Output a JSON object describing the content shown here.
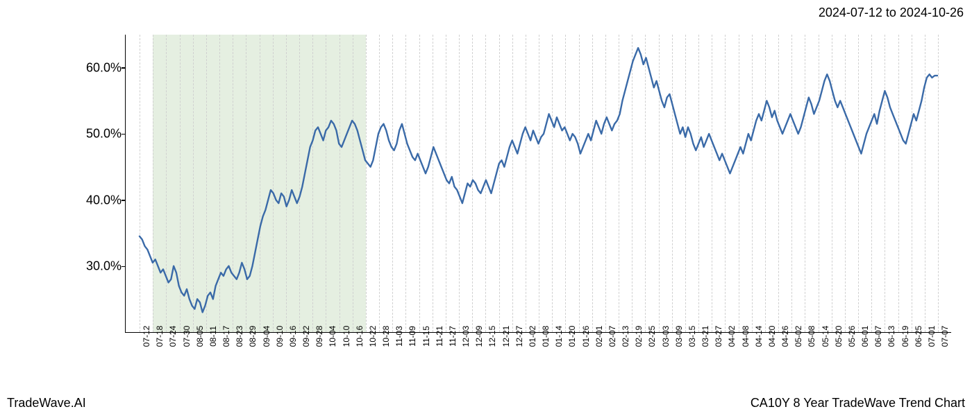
{
  "header": {
    "date_range": "2024-07-12 to 2024-10-26"
  },
  "footer": {
    "left": "TradeWave.AI",
    "right": "CA10Y 8 Year TradeWave Trend Chart"
  },
  "chart": {
    "type": "line",
    "background_color": "#ffffff",
    "grid_color": "#d0d0d0",
    "grid_style": "dashed",
    "axis_color": "#000000",
    "line_color": "#3a6aa8",
    "line_width": 2.4,
    "highlight_band": {
      "x_start_index": 1,
      "x_end_index": 17,
      "fill_color": "rgba(180,210,170,0.35)"
    },
    "y_axis": {
      "min": 20,
      "max": 65,
      "ticks": [
        30.0,
        40.0,
        50.0,
        60.0
      ],
      "tick_labels": [
        "30.0%",
        "40.0%",
        "50.0%",
        "60.0%"
      ],
      "label_fontsize": 18
    },
    "x_axis": {
      "labels": [
        "07-12",
        "07-18",
        "07-24",
        "07-30",
        "08-05",
        "08-11",
        "08-17",
        "08-23",
        "08-29",
        "09-04",
        "09-10",
        "09-16",
        "09-22",
        "09-28",
        "10-04",
        "10-10",
        "10-16",
        "10-22",
        "10-28",
        "11-03",
        "11-09",
        "11-15",
        "11-21",
        "11-27",
        "12-03",
        "12-09",
        "12-15",
        "12-21",
        "12-27",
        "01-02",
        "01-08",
        "01-14",
        "01-20",
        "01-26",
        "02-01",
        "02-07",
        "02-13",
        "02-19",
        "02-25",
        "03-03",
        "03-09",
        "03-15",
        "03-21",
        "03-27",
        "04-02",
        "04-08",
        "04-14",
        "04-20",
        "04-26",
        "05-02",
        "05-08",
        "05-14",
        "05-20",
        "05-26",
        "06-01",
        "06-07",
        "06-13",
        "06-19",
        "06-25",
        "07-01",
        "07-07"
      ],
      "label_fontsize": 12,
      "label_rotation": -90
    },
    "series": {
      "name": "CA10Y",
      "values": [
        34.5,
        34.0,
        33.0,
        32.5,
        31.5,
        30.5,
        31.0,
        30.0,
        29.0,
        29.5,
        28.5,
        27.5,
        28.0,
        30.0,
        29.0,
        27.0,
        26.0,
        25.5,
        26.5,
        25.0,
        24.0,
        23.5,
        25.0,
        24.5,
        23.0,
        24.0,
        25.5,
        26.0,
        25.0,
        27.0,
        28.0,
        29.0,
        28.5,
        29.5,
        30.0,
        29.0,
        28.5,
        28.0,
        29.0,
        30.5,
        29.5,
        28.0,
        28.5,
        30.0,
        32.0,
        34.0,
        36.0,
        37.5,
        38.5,
        40.0,
        41.5,
        41.0,
        40.0,
        39.5,
        41.0,
        40.5,
        39.0,
        40.0,
        41.5,
        40.5,
        39.5,
        40.5,
        42.0,
        44.0,
        46.0,
        48.0,
        49.0,
        50.5,
        51.0,
        50.0,
        49.0,
        50.5,
        51.0,
        52.0,
        51.5,
        50.5,
        48.5,
        48.0,
        49.0,
        50.0,
        51.0,
        52.0,
        51.5,
        50.5,
        49.0,
        47.5,
        46.0,
        45.5,
        45.0,
        46.0,
        48.0,
        50.0,
        51.0,
        51.5,
        50.5,
        49.0,
        48.0,
        47.5,
        48.5,
        50.5,
        51.5,
        50.0,
        48.5,
        47.5,
        46.5,
        46.0,
        47.0,
        46.0,
        45.0,
        44.0,
        45.0,
        46.5,
        48.0,
        47.0,
        46.0,
        45.0,
        44.0,
        43.0,
        42.5,
        43.5,
        42.0,
        41.5,
        40.5,
        39.5,
        41.0,
        42.5,
        42.0,
        43.0,
        42.5,
        41.5,
        41.0,
        42.0,
        43.0,
        42.0,
        41.0,
        42.5,
        44.0,
        45.5,
        46.0,
        45.0,
        46.5,
        48.0,
        49.0,
        48.0,
        47.0,
        48.5,
        50.0,
        51.0,
        50.0,
        49.0,
        50.5,
        49.5,
        48.5,
        49.5,
        50.0,
        51.5,
        53.0,
        52.0,
        51.0,
        52.5,
        51.5,
        50.5,
        51.0,
        50.0,
        49.0,
        50.0,
        49.5,
        48.5,
        47.0,
        48.0,
        49.0,
        50.0,
        49.0,
        50.5,
        52.0,
        51.0,
        50.0,
        51.5,
        52.5,
        51.5,
        50.5,
        51.5,
        52.0,
        53.0,
        55.0,
        56.5,
        58.0,
        59.5,
        61.0,
        62.0,
        63.0,
        62.0,
        60.5,
        61.5,
        60.0,
        58.5,
        57.0,
        58.0,
        56.5,
        55.0,
        54.0,
        55.5,
        56.0,
        54.5,
        53.0,
        51.5,
        50.0,
        51.0,
        49.5,
        51.0,
        50.0,
        48.5,
        47.5,
        48.5,
        49.5,
        48.0,
        49.0,
        50.0,
        49.0,
        48.0,
        47.0,
        46.0,
        47.0,
        46.0,
        45.0,
        44.0,
        45.0,
        46.0,
        47.0,
        48.0,
        47.0,
        48.5,
        50.0,
        49.0,
        50.5,
        52.0,
        53.0,
        52.0,
        53.5,
        55.0,
        54.0,
        52.5,
        53.5,
        52.0,
        51.0,
        50.0,
        51.0,
        52.0,
        53.0,
        52.0,
        51.0,
        50.0,
        51.0,
        52.5,
        54.0,
        55.5,
        54.5,
        53.0,
        54.0,
        55.0,
        56.5,
        58.0,
        59.0,
        58.0,
        56.5,
        55.0,
        54.0,
        55.0,
        54.0,
        53.0,
        52.0,
        51.0,
        50.0,
        49.0,
        48.0,
        47.0,
        48.5,
        50.0,
        51.0,
        52.0,
        53.0,
        51.5,
        53.5,
        55.0,
        56.5,
        55.5,
        54.0,
        53.0,
        52.0,
        51.0,
        50.0,
        49.0,
        48.5,
        50.0,
        51.5,
        53.0,
        52.0,
        53.5,
        55.0,
        57.0,
        58.5,
        59.0,
        58.5,
        58.8,
        58.8
      ]
    }
  }
}
